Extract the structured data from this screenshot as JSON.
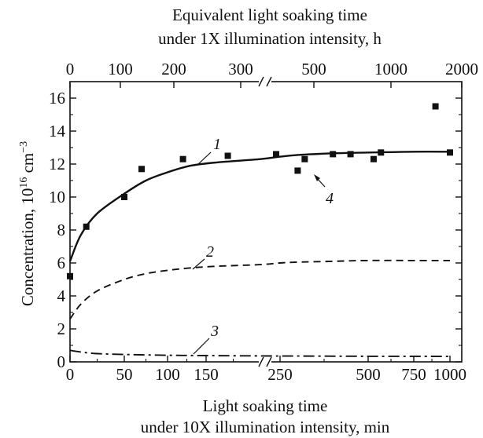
{
  "chart_data": {
    "type": "scatter",
    "top_axis": {
      "title_lines": [
        "Equivalent light soaking time",
        "under 1X illumination intensity, h"
      ],
      "tick_labels": [
        "0",
        "100",
        "200",
        "300",
        "500",
        "1000",
        "2000"
      ]
    },
    "bottom_axis": {
      "title_lines": [
        "Light soaking time",
        "under 10X illumination intensity, min"
      ],
      "tick_labels": [
        "0",
        "50",
        "100",
        "150",
        "250",
        "500",
        "750",
        "1000"
      ]
    },
    "y_axis": {
      "title_main": "Concentration, 10",
      "title_exp": "16",
      "title_unit": " cm",
      "title_unit_exp": "−3",
      "range": [
        0,
        17
      ],
      "ticks": [
        0,
        2,
        4,
        6,
        8,
        10,
        12,
        14,
        16
      ],
      "tick_labels": [
        "0",
        "2",
        "4",
        "6",
        "8",
        "10",
        "12",
        "14",
        "16"
      ]
    },
    "x_axis_break": "after 200 min (bottom) / 300 h (top)",
    "series": [
      {
        "name": "1",
        "style": "solid",
        "x_min": [
          0,
          10,
          25,
          50,
          75,
          100,
          130,
          160,
          200,
          250,
          300,
          400,
          500,
          750,
          1000
        ],
        "y": [
          6.1,
          7.7,
          9.0,
          10.2,
          11.0,
          11.5,
          11.9,
          12.1,
          12.3,
          12.45,
          12.55,
          12.65,
          12.7,
          12.75,
          12.75
        ]
      },
      {
        "name": "2",
        "style": "dashed",
        "x_min": [
          0,
          10,
          25,
          50,
          75,
          100,
          130,
          160,
          200,
          250,
          300,
          400,
          500,
          750,
          1000
        ],
        "y": [
          2.6,
          3.5,
          4.3,
          5.0,
          5.35,
          5.55,
          5.7,
          5.8,
          5.9,
          6.0,
          6.05,
          6.1,
          6.15,
          6.15,
          6.15
        ]
      },
      {
        "name": "3",
        "style": "dash-dot",
        "x_min": [
          0,
          10,
          25,
          50,
          100,
          150,
          200,
          300,
          500,
          1000
        ],
        "y": [
          0.7,
          0.6,
          0.5,
          0.45,
          0.4,
          0.38,
          0.36,
          0.35,
          0.34,
          0.33
        ]
      }
    ],
    "points": {
      "name": "4",
      "marker": "filled-square",
      "x_min": [
        0,
        15,
        50,
        70,
        120,
        170,
        240,
        300,
        320,
        400,
        450,
        530,
        570,
        900,
        1000
      ],
      "y": [
        5.2,
        8.2,
        10.0,
        11.7,
        12.3,
        12.5,
        12.6,
        11.6,
        12.3,
        12.6,
        12.6,
        12.3,
        12.7,
        15.5,
        12.7
      ]
    }
  }
}
